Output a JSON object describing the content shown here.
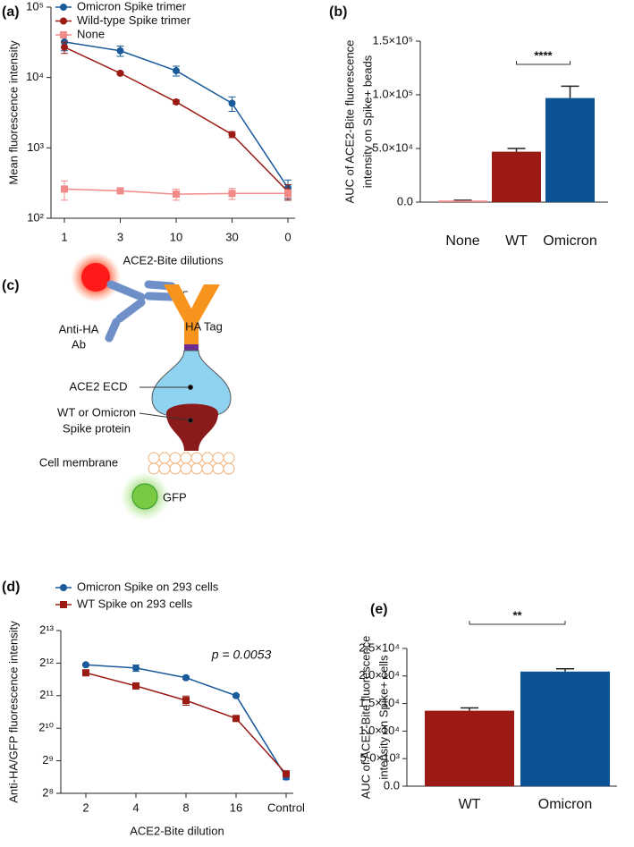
{
  "chart_data": [
    {
      "type": "line",
      "panel_label": "(a)",
      "ylabel": "Mean fluorescence intensity",
      "xlabel": "ACE2-Bite dilutions",
      "categories": [
        "1",
        "3",
        "10",
        "30",
        "0"
      ],
      "yscale": "log",
      "ylim": [
        100,
        100000
      ],
      "yticks": [
        {
          "value": 100,
          "label": "10²"
        },
        {
          "value": 1000,
          "label": "10³"
        },
        {
          "value": 10000,
          "label": "10⁴"
        },
        {
          "value": 100000,
          "label": "10⁵"
        }
      ],
      "series": [
        {
          "name": "Omicron Spike trimer",
          "color": "#1a5a9a",
          "marker": "circle",
          "values": [
            32000,
            24000,
            12500,
            4300,
            270
          ],
          "errors": [
            8000,
            4000,
            2000,
            1000,
            80
          ]
        },
        {
          "name": "Wild-type Spike trimer",
          "color": "#9b1b14",
          "marker": "circle",
          "values": [
            27000,
            11500,
            4500,
            1550,
            240
          ],
          "errors": [
            5000,
            500,
            300,
            150,
            60
          ]
        },
        {
          "name": "None",
          "color": "#f28a8a",
          "marker": "square",
          "values": [
            260,
            245,
            220,
            225,
            225
          ],
          "errors": [
            80,
            20,
            40,
            40,
            30
          ]
        }
      ]
    },
    {
      "type": "bar",
      "panel_label": "(b)",
      "ylabel": [
        "AUC of ACE2-Bite fluorescence",
        "intensity on Spike+ beads"
      ],
      "categories": [
        "None",
        "WT",
        "Omicron"
      ],
      "values": [
        1500,
        47000,
        97000
      ],
      "errors": [
        300,
        3000,
        11000
      ],
      "colors": [
        "#f28a8a",
        "#9b1b14",
        "#0b5394"
      ],
      "ylim": [
        0,
        150000
      ],
      "yticks": [
        {
          "value": 0,
          "label": "0.0"
        },
        {
          "value": 50000,
          "label": "5.0×10⁴"
        },
        {
          "value": 100000,
          "label": "1.0×10⁵"
        },
        {
          "value": 150000,
          "label": "1.5×10⁵"
        }
      ],
      "significance": "****"
    },
    {
      "type": "line",
      "panel_label": "(d)",
      "ylabel": "Anti-HA/GFP fluorescence intensity",
      "xlabel": "ACE2-Bite dilution",
      "categories": [
        "2",
        "4",
        "8",
        "16",
        "Control"
      ],
      "yscale": "log",
      "ylim": [
        256,
        8192
      ],
      "yticks": [
        {
          "value": 256,
          "label": "2⁸"
        },
        {
          "value": 512,
          "label": "2⁹"
        },
        {
          "value": 1024,
          "label": "2¹⁰"
        },
        {
          "value": 2048,
          "label": "2¹¹"
        },
        {
          "value": 4096,
          "label": "2¹²"
        },
        {
          "value": 8192,
          "label": "2¹³"
        }
      ],
      "annotation": "p = 0.0053",
      "series": [
        {
          "name": "Omicron Spike on 293 cells",
          "color": "#1a5a9a",
          "marker": "circle",
          "values": [
            3950,
            3690,
            3000,
            2048,
            362
          ],
          "errors": [
            100,
            250,
            100,
            50,
            20
          ]
        },
        {
          "name": "WT Spike on 293 cells",
          "color": "#9b1b14",
          "marker": "square",
          "values": [
            3330,
            2520,
            1850,
            1260,
            388
          ],
          "errors": [
            80,
            60,
            180,
            40,
            20
          ]
        }
      ]
    },
    {
      "type": "bar",
      "panel_label": "(e)",
      "ylabel": [
        "AUC of ACE2-Bite fluorescence",
        "intensity on Spike+ cells"
      ],
      "categories": [
        "WT",
        "Omicron"
      ],
      "values": [
        13700,
        20800
      ],
      "errors": [
        500,
        500
      ],
      "colors": [
        "#9b1b14",
        "#0b5394"
      ],
      "ylim": [
        0,
        25000
      ],
      "yticks": [
        {
          "value": 0,
          "label": "0.0"
        },
        {
          "value": 5000,
          "label": "5.0×10³"
        },
        {
          "value": 10000,
          "label": "1.0×10⁴"
        },
        {
          "value": 15000,
          "label": "1.5×10⁴"
        },
        {
          "value": 20000,
          "label": "2.0×10⁴"
        },
        {
          "value": 25000,
          "label": "2.5×10⁴"
        }
      ],
      "significance": "**"
    }
  ],
  "diagram": {
    "panel_label": "(c)",
    "labels": [
      "Anti-HA",
      "Ab",
      "HA Tag",
      "ACE2 ECD",
      "WT or Omicron",
      "Spike protein",
      "Cell membrane",
      "GFP"
    ]
  }
}
